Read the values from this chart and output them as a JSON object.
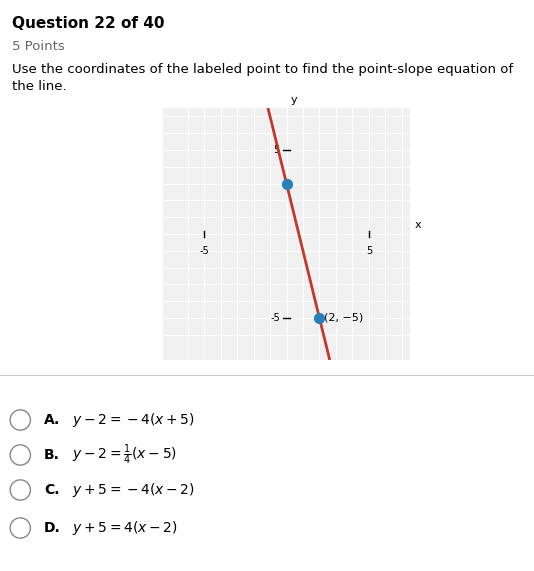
{
  "title_main": "Question 22 of 40",
  "title_sub": "5 Points",
  "question_text_line1": "Use the coordinates of the labeled point to find the point-slope equation of",
  "question_text_line2": "the line.",
  "graph": {
    "xlim": [
      -7.5,
      7.5
    ],
    "ylim": [
      -7.5,
      7.5
    ],
    "xticks": [
      -5,
      5
    ],
    "yticks": [
      -5,
      5
    ],
    "slope": -4,
    "intercept": 3,
    "line_color": "#c0392b",
    "line_width": 2.0,
    "point1_x": 0.0,
    "point1_y": 3.0,
    "point2_x": 2.0,
    "point2_y": -5.0,
    "point_color": "#2980b9",
    "point_size": 50,
    "point_label": "(2, −5)",
    "bg_color": "#f0f0f0"
  },
  "choices": [
    {
      "label": "A.",
      "formula": "y − 2 = −4(x + 5)"
    },
    {
      "label": "B.",
      "formula": "y − 2 = ¼(x − 5)"
    },
    {
      "label": "C.",
      "formula": "y + 5 = −4(x − 2)"
    },
    {
      "label": "D.",
      "formula": "y + 5 = 4(x − 2)"
    }
  ],
  "separator_color": "#cccccc"
}
